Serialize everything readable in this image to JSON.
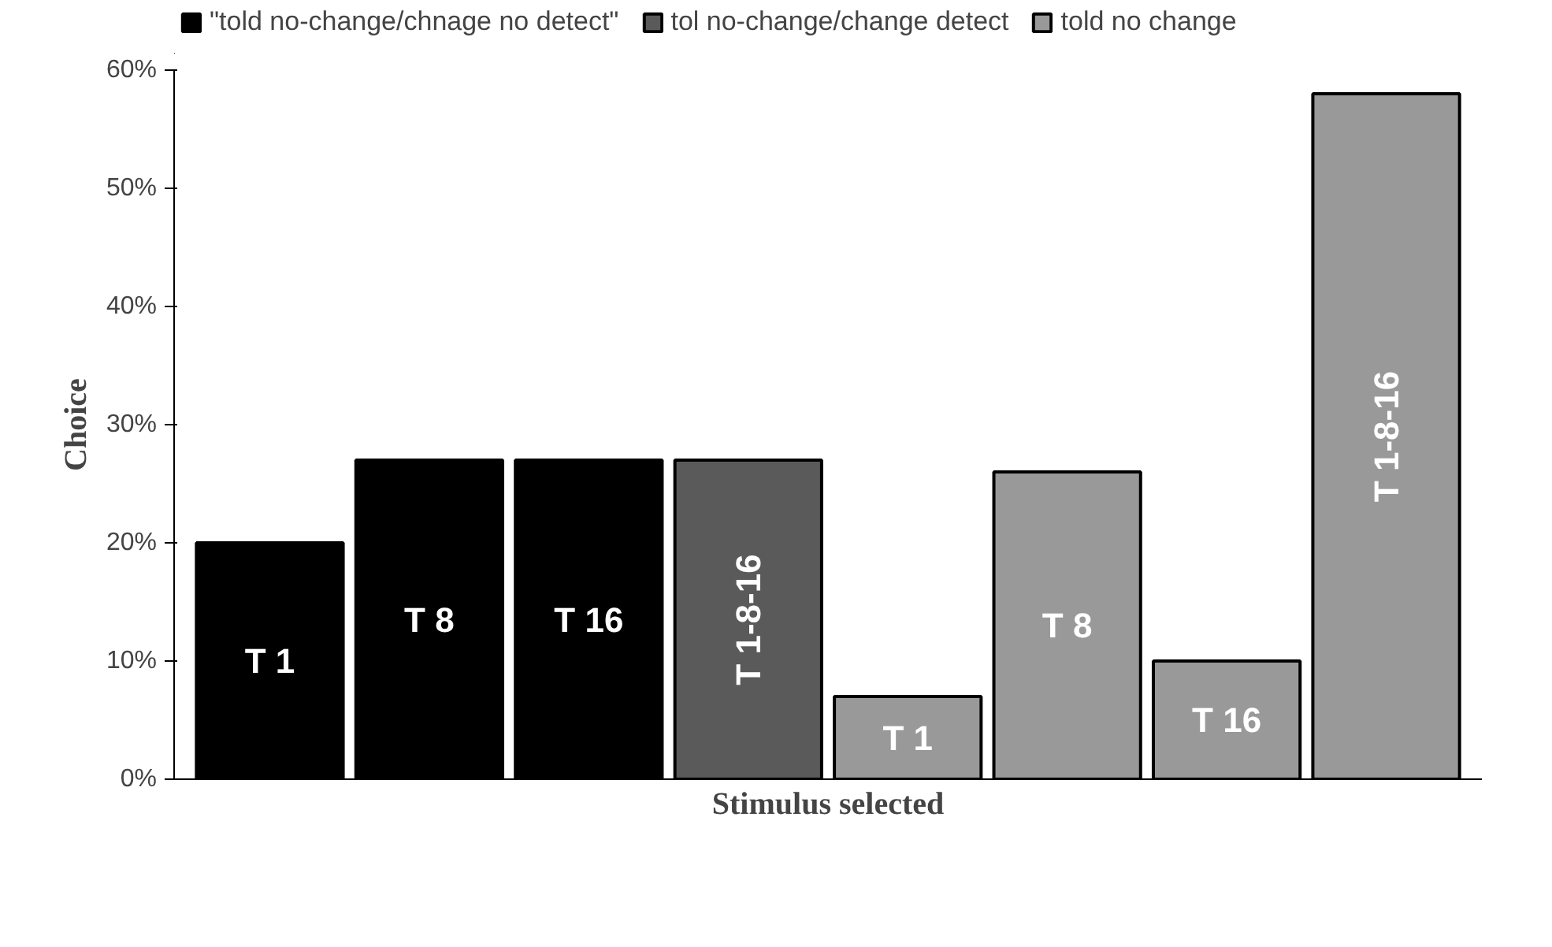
{
  "chart_data": {
    "type": "bar",
    "xlabel": "Stimulus selected",
    "ylabel": "Choice",
    "categories": [
      "T 1",
      "T 8",
      "T 16",
      "T 1-8-16",
      "T 1",
      "T 8",
      "T 16",
      "T 1-8-16"
    ],
    "series": [
      {
        "name": "\"told no-change/chnage no detect\"",
        "color": "#000000",
        "values": [
          20,
          27,
          27,
          null,
          null,
          null,
          null,
          null
        ]
      },
      {
        "name": "tol no-change/change detect",
        "color": "#5a5a5a",
        "values": [
          null,
          null,
          null,
          27,
          null,
          null,
          null,
          null
        ]
      },
      {
        "name": "told no change",
        "color": "#999999",
        "values": [
          null,
          null,
          null,
          null,
          7,
          26,
          10,
          58
        ]
      }
    ],
    "ylim": [
      0,
      60
    ],
    "yticks": [
      {
        "value": 0,
        "label": "0%"
      },
      {
        "value": 10,
        "label": "10%"
      },
      {
        "value": 20,
        "label": "20%"
      },
      {
        "value": 30,
        "label": "30%"
      },
      {
        "value": 40,
        "label": "40%"
      },
      {
        "value": 50,
        "label": "50%"
      },
      {
        "value": 60,
        "label": "60%"
      }
    ],
    "grid": false,
    "legend": "top"
  }
}
